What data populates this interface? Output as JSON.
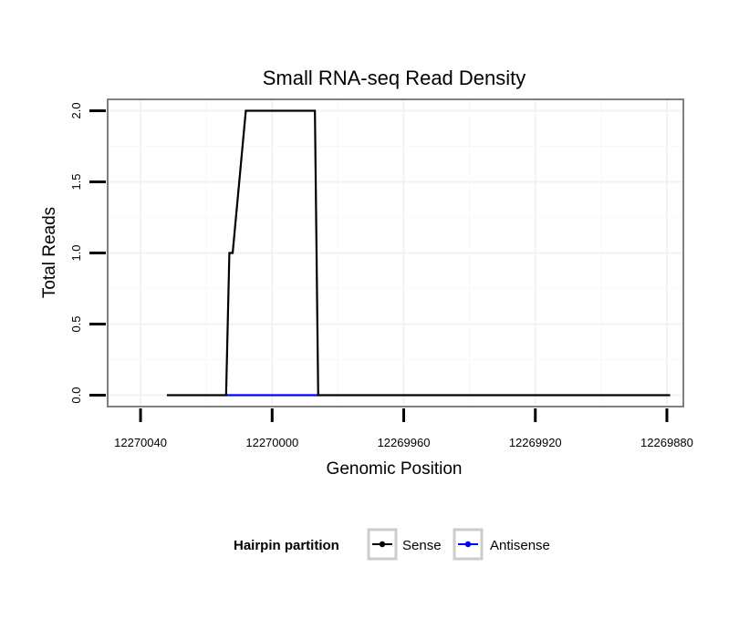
{
  "chart_data": {
    "type": "line",
    "title": "Small RNA-seq Read Density",
    "xlabel": "Genomic Position",
    "ylabel": "Total Reads",
    "x_reversed": true,
    "xlim": [
      12270050,
      12269875
    ],
    "ylim": [
      -0.08,
      2.08
    ],
    "x_ticks": [
      12270040,
      12270000,
      12269960,
      12269920,
      12269880
    ],
    "x_tick_labels": [
      "12270040",
      "12270000",
      "12269960",
      "12269920",
      "12269880"
    ],
    "y_ticks": [
      0.0,
      0.5,
      1.0,
      1.5,
      2.0
    ],
    "y_tick_labels": [
      "0.0",
      "0.5",
      "1.0",
      "1.5",
      "2.0"
    ],
    "grid": true,
    "legend": {
      "title": "Hairpin partition",
      "position": "bottom"
    },
    "series": [
      {
        "name": "Sense",
        "color": "#000000",
        "x": [
          12270032,
          12270014,
          12270013,
          12270012,
          12270008,
          12269987,
          12269986,
          12269879
        ],
        "y": [
          0,
          0,
          1,
          1,
          2,
          2,
          0,
          0
        ]
      },
      {
        "name": "Antisense",
        "color": "#0000ff",
        "x": [
          12270014,
          12269986
        ],
        "y": [
          0,
          0
        ]
      }
    ]
  }
}
